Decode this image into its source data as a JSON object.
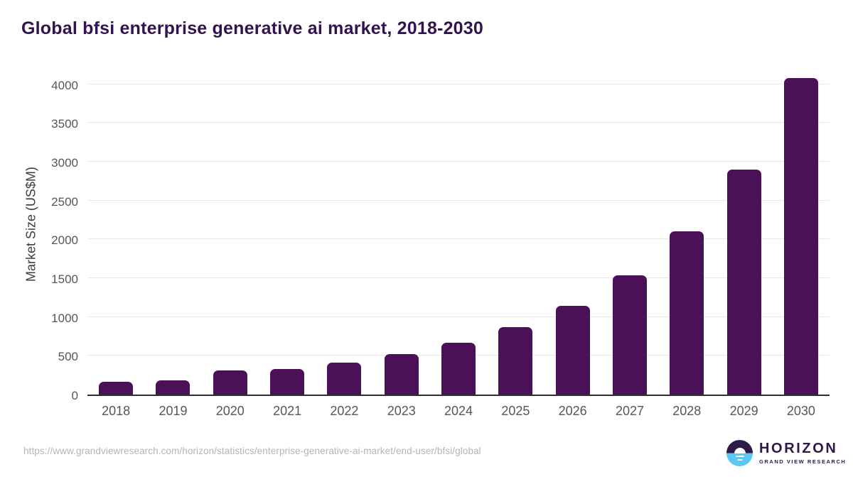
{
  "title": "Global bfsi enterprise generative ai market, 2018-2030",
  "chart_data": {
    "type": "bar",
    "title": "Global bfsi enterprise generative ai market, 2018-2030",
    "categories": [
      "2018",
      "2019",
      "2020",
      "2021",
      "2022",
      "2023",
      "2024",
      "2025",
      "2026",
      "2027",
      "2028",
      "2029",
      "2030"
    ],
    "values": [
      165,
      180,
      315,
      330,
      415,
      520,
      665,
      865,
      1145,
      1540,
      2100,
      2900,
      4080
    ],
    "xlabel": "",
    "ylabel": "Market Size (US$M)",
    "yticks": [
      0,
      500,
      1000,
      1500,
      2000,
      2500,
      3000,
      3500,
      4000
    ],
    "ylim": [
      0,
      4170
    ],
    "grid": true,
    "legend_position": "none",
    "bar_color": "#4A1058"
  },
  "footer": {
    "source_url": "https://www.grandviewresearch.com/horizon/statistics/enterprise-generative-ai-market/end-user/bfsi/global",
    "logo": {
      "name": "HORIZON",
      "subtitle": "GRAND VIEW RESEARCH"
    }
  },
  "colors": {
    "title_text": "#33134F",
    "bar": "#4A1058",
    "gridline": "#E9E9E9",
    "axis_line": "#2E2E2E",
    "tick_label": "#55565A",
    "axis_title": "#3C3C3C",
    "url_text": "#B4B4B4",
    "logo_purple": "#2D1A47",
    "logo_blue": "#5BC8F3"
  }
}
